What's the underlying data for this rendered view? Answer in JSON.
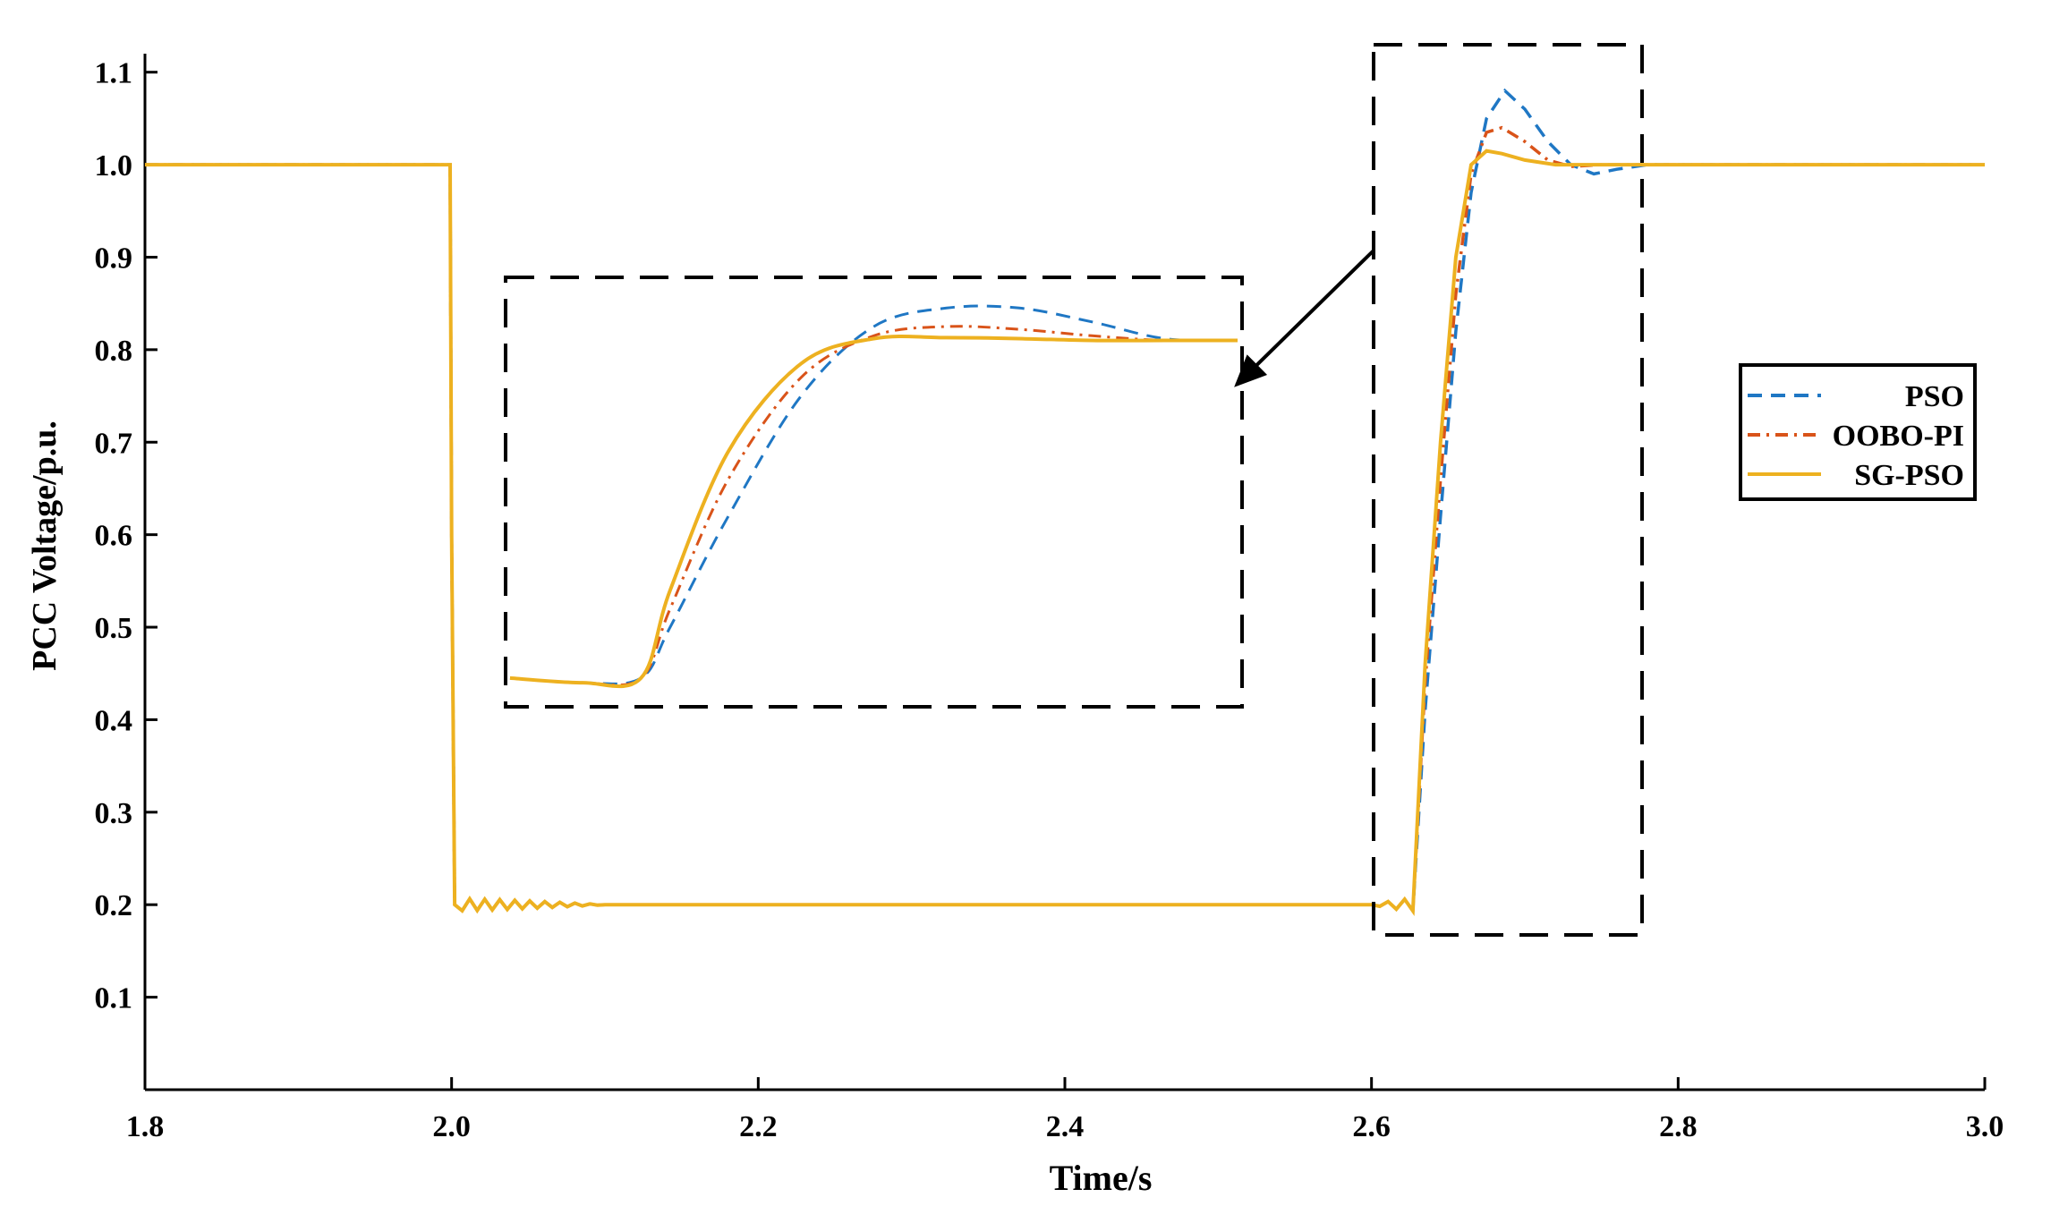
{
  "chart_data": {
    "type": "line",
    "title": "",
    "xlabel": "Time/s",
    "ylabel": "PCC Voltage/p.u.",
    "xlim": [
      1.8,
      3.0
    ],
    "ylim": [
      0.0,
      1.12
    ],
    "x_ticks": [
      "1.8",
      "2.0",
      "2.2",
      "2.4",
      "2.6",
      "2.8",
      "3.0"
    ],
    "y_ticks": [
      "0.1",
      "0.2",
      "0.3",
      "0.4",
      "0.5",
      "0.6",
      "0.7",
      "0.8",
      "0.9",
      "1.0",
      "1.1"
    ],
    "grid": false,
    "legend_position": "right",
    "colors": {
      "PSO": "#1f77c4",
      "OOBO-PI": "#d95319",
      "SG-PSO": "#edb120"
    },
    "series": [
      {
        "name": "PSO",
        "style": "dashed",
        "x": [
          1.8,
          1.85,
          1.9,
          1.95,
          1.999,
          2.0,
          2.002,
          2.1,
          2.2,
          2.3,
          2.4,
          2.5,
          2.6,
          2.627,
          2.635,
          2.645,
          2.655,
          2.665,
          2.675,
          2.687,
          2.7,
          2.715,
          2.73,
          2.745,
          2.76,
          2.78,
          2.8,
          2.9,
          3.0
        ],
        "y": [
          1.0,
          1.0,
          1.0,
          1.0,
          1.0,
          0.6,
          0.2,
          0.2,
          0.2,
          0.2,
          0.2,
          0.2,
          0.2,
          0.2,
          0.41,
          0.62,
          0.82,
          0.97,
          1.05,
          1.08,
          1.06,
          1.025,
          1.0,
          0.99,
          0.995,
          1.0,
          1.0,
          1.0,
          1.0
        ]
      },
      {
        "name": "OOBO-PI",
        "style": "dash-dot",
        "x": [
          1.8,
          1.85,
          1.9,
          1.95,
          1.999,
          2.0,
          2.002,
          2.1,
          2.2,
          2.3,
          2.4,
          2.5,
          2.6,
          2.627,
          2.635,
          2.645,
          2.655,
          2.665,
          2.675,
          2.685,
          2.7,
          2.715,
          2.73,
          2.75,
          2.8,
          2.9,
          3.0
        ],
        "y": [
          1.0,
          1.0,
          1.0,
          1.0,
          1.0,
          0.6,
          0.2,
          0.2,
          0.2,
          0.2,
          0.2,
          0.2,
          0.2,
          0.2,
          0.44,
          0.66,
          0.86,
          0.99,
          1.035,
          1.04,
          1.025,
          1.005,
          0.998,
          1.0,
          1.0,
          1.0,
          1.0
        ]
      },
      {
        "name": "SG-PSO",
        "style": "solid",
        "x": [
          1.8,
          1.85,
          1.9,
          1.95,
          1.999,
          2.0,
          2.002,
          2.1,
          2.2,
          2.3,
          2.4,
          2.5,
          2.6,
          2.627,
          2.635,
          2.645,
          2.655,
          2.665,
          2.675,
          2.685,
          2.7,
          2.72,
          2.75,
          2.8,
          2.9,
          3.0
        ],
        "y": [
          1.0,
          1.0,
          1.0,
          1.0,
          1.0,
          0.6,
          0.2,
          0.2,
          0.2,
          0.2,
          0.2,
          0.2,
          0.2,
          0.2,
          0.46,
          0.7,
          0.9,
          1.0,
          1.015,
          1.012,
          1.005,
          1.0,
          1.0,
          1.0,
          1.0,
          1.0
        ]
      }
    ],
    "inset": {
      "description_series_order": [
        "PSO",
        "OOBO-PI",
        "SG-PSO"
      ],
      "x": [
        0,
        0.1,
        0.18,
        0.22,
        0.3,
        0.4,
        0.5,
        0.6,
        0.7,
        0.8,
        0.9,
        1.0
      ],
      "y_PSO": [
        0.445,
        0.44,
        0.445,
        0.5,
        0.62,
        0.75,
        0.825,
        0.845,
        0.845,
        0.83,
        0.812,
        0.81
      ],
      "y_OOBO-PI": [
        0.445,
        0.44,
        0.445,
        0.52,
        0.66,
        0.77,
        0.815,
        0.825,
        0.822,
        0.815,
        0.81,
        0.81
      ],
      "y_SG-PSO": [
        0.445,
        0.44,
        0.445,
        0.54,
        0.69,
        0.785,
        0.812,
        0.813,
        0.812,
        0.81,
        0.81,
        0.81
      ]
    }
  }
}
